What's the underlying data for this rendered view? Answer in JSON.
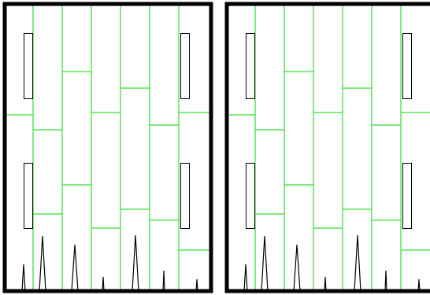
{
  "diagram": {
    "kind": "twin floor-plank layout panels with spike markers",
    "colors": {
      "background": "#ffffff",
      "frame": "#000000",
      "plank_line": "#33dd33",
      "rail": "#000000",
      "spike": "#000000"
    },
    "panels": [
      {
        "name": "left"
      },
      {
        "name": "right"
      }
    ]
  }
}
